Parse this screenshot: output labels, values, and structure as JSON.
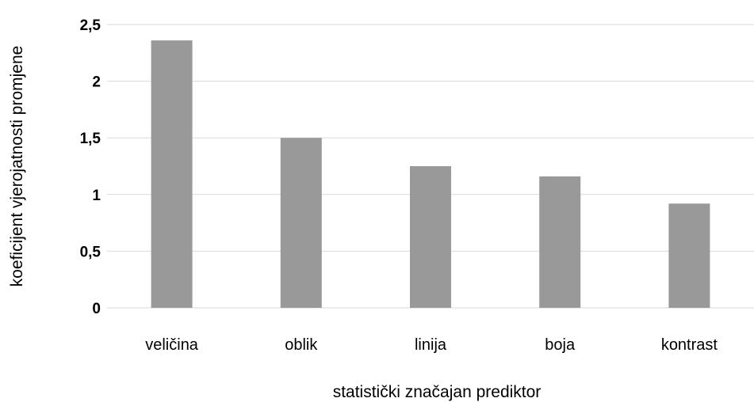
{
  "chart_data": {
    "type": "bar",
    "title": "",
    "xlabel": "statistički značajan prediktor",
    "ylabel": "koeficijent vjerojatnosti promjene",
    "categories": [
      "veličina",
      "oblik",
      "linija",
      "boja",
      "kontrast"
    ],
    "values": [
      2.36,
      1.5,
      1.25,
      1.16,
      0.92
    ],
    "ylim": [
      0,
      2.5
    ],
    "yticks": [
      0,
      0.5,
      1,
      1.5,
      2,
      2.5
    ],
    "ytick_labels": [
      "0",
      "0,5",
      "1",
      "1,5",
      "2",
      "2,5"
    ],
    "grid": true,
    "legend": "none",
    "bar_color": "#999999"
  }
}
